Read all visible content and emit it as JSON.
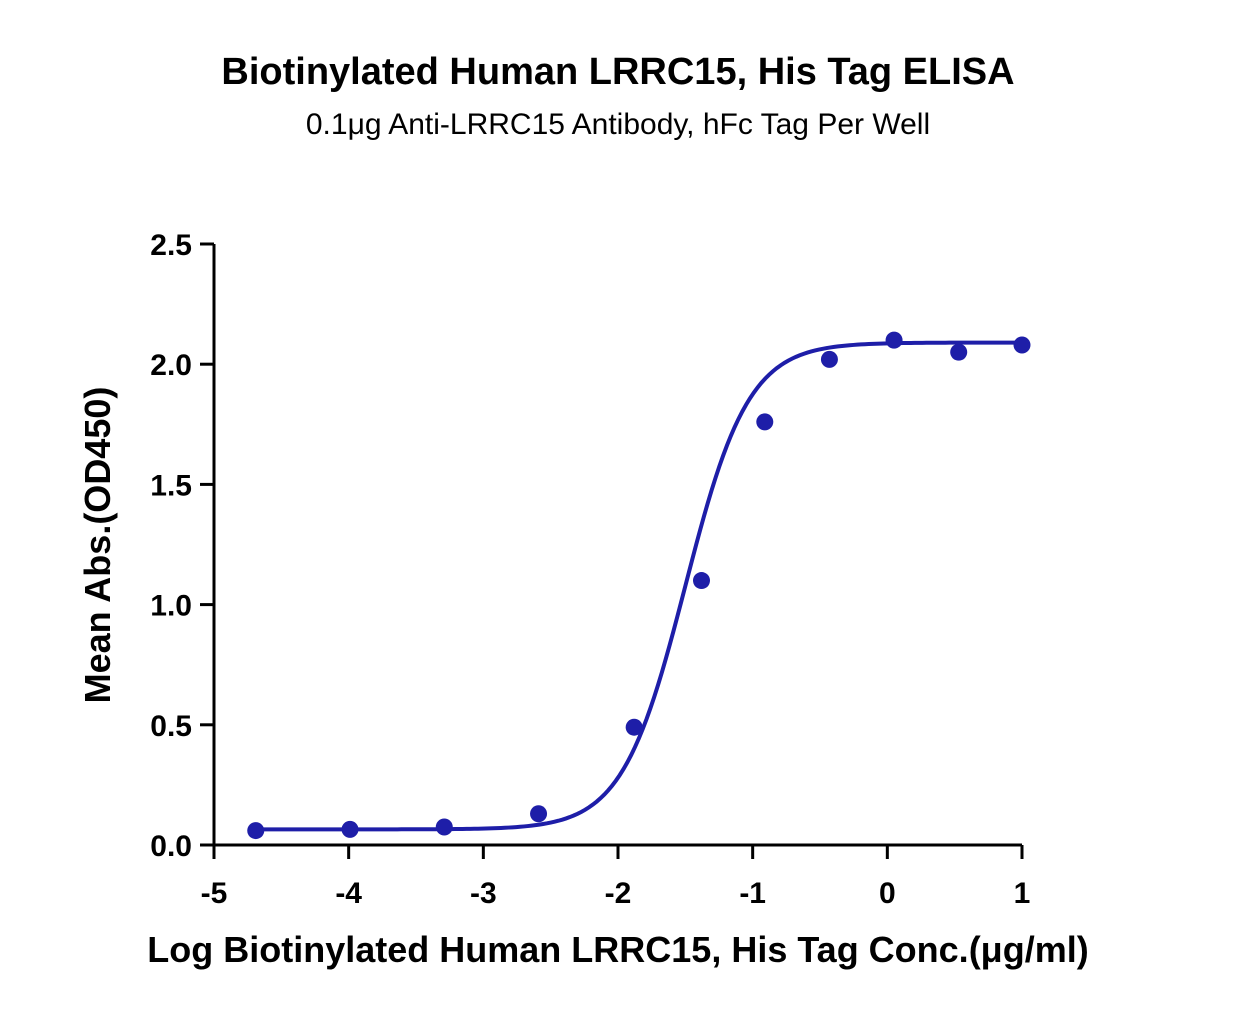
{
  "chart_data": {
    "type": "scatter",
    "title": "Biotinylated Human LRRC15, His Tag ELISA",
    "subtitle": "0.1μg Anti-LRRC15 Antibody, hFc Tag Per Well",
    "xlabel": "Log Biotinylated Human LRRC15, His Tag Conc.(μg/ml)",
    "ylabel": "Mean Abs.(OD450)",
    "xlim": [
      -5,
      1
    ],
    "ylim": [
      0,
      2.5
    ],
    "xticks": [
      "-5",
      "-4",
      "-3",
      "-2",
      "-1",
      "0",
      "1"
    ],
    "yticks": [
      "0.0",
      "0.5",
      "1.0",
      "1.5",
      "2.0",
      "2.5"
    ],
    "grid": false,
    "legend": "none",
    "color": "#1e1ea8",
    "series": [
      {
        "x": [
          -4.69,
          -3.99,
          -3.29,
          -2.59,
          -1.88,
          -1.38,
          -0.91,
          -0.43,
          0.05,
          0.53,
          1.0
        ],
        "y": [
          0.06,
          0.065,
          0.075,
          0.13,
          0.49,
          1.1,
          1.76,
          2.02,
          2.1,
          2.05,
          2.08
        ]
      }
    ],
    "fit_curve": {
      "model": "4PL",
      "bottom": 0.065,
      "top": 2.09,
      "log_ec50": -1.5,
      "hill_slope": 1.85
    }
  }
}
